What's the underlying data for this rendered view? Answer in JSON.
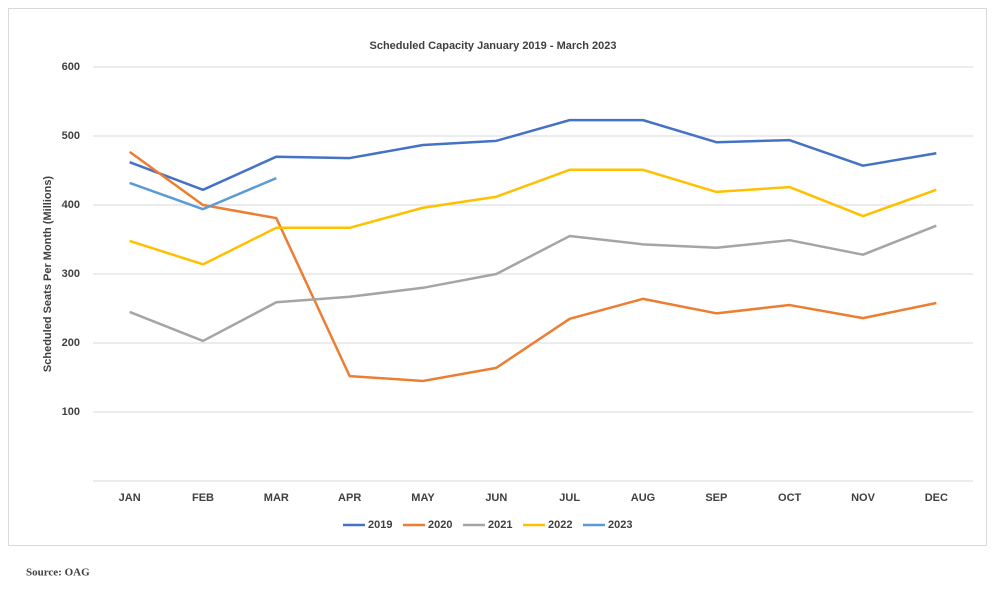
{
  "chart_data": {
    "type": "line",
    "title": "Scheduled Capacity January 2019   - March 2023",
    "y_label": "Scheduled Seats Per Month (Millions)",
    "source": "Source: OAG",
    "categories": [
      "JAN",
      "FEB",
      "MAR",
      "APR",
      "MAY",
      "JUN",
      "JUL",
      "AUG",
      "SEP",
      "OCT",
      "NOV",
      "DEC"
    ],
    "series": [
      {
        "name": "2019",
        "color": "#4472c4",
        "values": [
          462,
          422,
          470,
          468,
          487,
          493,
          523,
          523,
          491,
          494,
          457,
          475
        ]
      },
      {
        "name": "2020",
        "color": "#ed7d31",
        "values": [
          477,
          400,
          381,
          152,
          145,
          164,
          235,
          264,
          243,
          255,
          236,
          258
        ]
      },
      {
        "name": "2021",
        "color": "#a5a5a5",
        "values": [
          245,
          203,
          259,
          267,
          280,
          300,
          355,
          343,
          338,
          349,
          328,
          370
        ]
      },
      {
        "name": "2022",
        "color": "#ffc000",
        "values": [
          348,
          314,
          367,
          367,
          396,
          412,
          451,
          451,
          419,
          426,
          384,
          422
        ]
      },
      {
        "name": "2023",
        "color": "#5b9bd5",
        "values": [
          432,
          394,
          439,
          null,
          null,
          null,
          null,
          null,
          null,
          null,
          null,
          null
        ]
      }
    ],
    "ylim": [
      0,
      600
    ],
    "yticks": [
      100,
      200,
      300,
      400,
      500,
      600
    ],
    "grid": true,
    "legend": "bottom"
  }
}
